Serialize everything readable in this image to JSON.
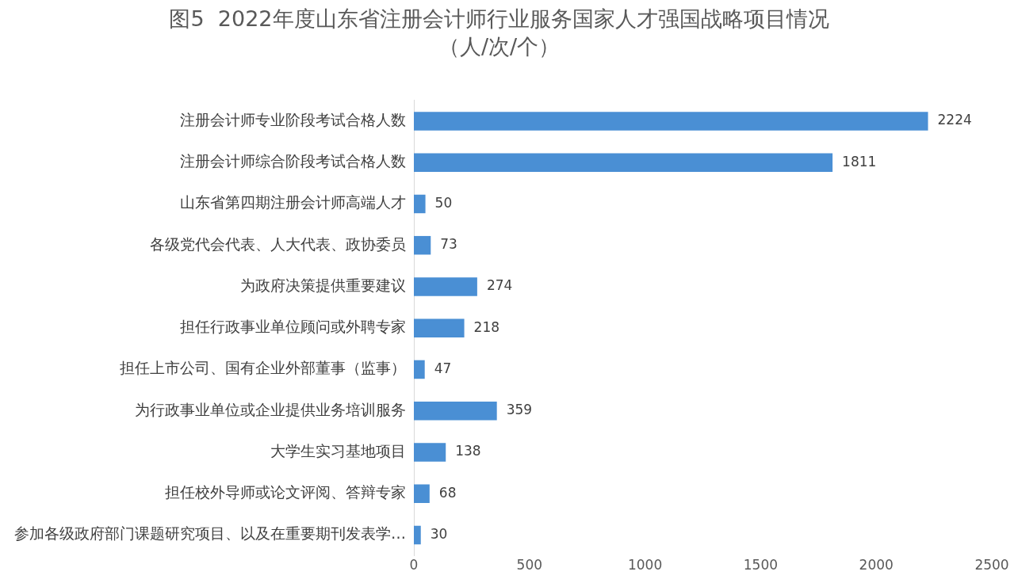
{
  "chart_data": {
    "type": "bar",
    "orientation": "horizontal",
    "title": "图5  2022年度山东省注册会计师行业服务国家人才强国战略项目情况",
    "subtitle": "（人/次/个）",
    "categories": [
      "注册会计师专业阶段考试合格人数",
      "注册会计师综合阶段考试合格人数",
      "山东省第四期注册会计师高端人才",
      "各级党代会代表、人大代表、政协委员",
      "为政府决策提供重要建议",
      "担任行政事业单位顾问或外聘专家",
      "担任上市公司、国有企业外部董事（监事）",
      "为行政事业单位或企业提供业务培训服务",
      "大学生实习基地项目",
      "担任校外导师或论文评阅、答辩专家",
      "参加各级政府部门课题研究项目、以及在重要期刊发表学…"
    ],
    "values": [
      2224,
      1811,
      50,
      73,
      274,
      218,
      47,
      359,
      138,
      68,
      30
    ],
    "color": "#4a8fd4",
    "xlim": [
      0,
      2500
    ],
    "xticks": [
      0,
      500,
      1000,
      1500,
      2000,
      2500
    ],
    "data_labels": true,
    "grid": false,
    "legend": false
  }
}
